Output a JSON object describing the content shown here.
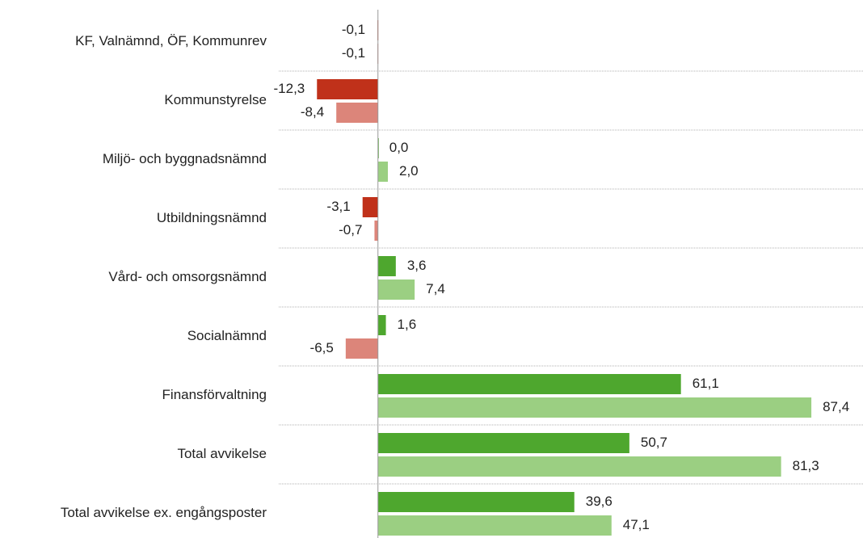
{
  "chart_data": {
    "type": "hbar",
    "categories": [
      "KF, Valnämnd, ÖF, Kommunrev",
      "Kommunstyrelse",
      "Miljö- och byggnadsnämnd",
      "Utbildningsnämnd",
      "Vård- och omsorgsnämnd",
      "Socialnämnd",
      "Finansförvaltning",
      "Total avvikelse",
      "Total avvikelse ex. engångsposter"
    ],
    "series": [
      {
        "color": "#4ea72e",
        "negative_color": "#c0311a",
        "values": [
          -0.1,
          -12.3,
          0.0,
          -3.1,
          3.6,
          1.6,
          61.1,
          50.7,
          39.6
        ],
        "value_labels": [
          "-0,1",
          "-12,3",
          "0,0",
          "-3,1",
          "3,6",
          "1,6",
          "61,1",
          "50,7",
          "39,6"
        ]
      },
      {
        "color": "#9bcf82",
        "negative_color": "#dc857a",
        "values": [
          -0.1,
          -8.4,
          2.0,
          -0.7,
          7.4,
          -6.5,
          87.4,
          81.3,
          47.1
        ],
        "value_labels": [
          "-0,1",
          "-8,4",
          "2,0",
          "-0,7",
          "7,4",
          "-6,5",
          "87,4",
          "81,3",
          "47,1"
        ]
      }
    ],
    "xlim": [
      -20,
      97
    ]
  }
}
